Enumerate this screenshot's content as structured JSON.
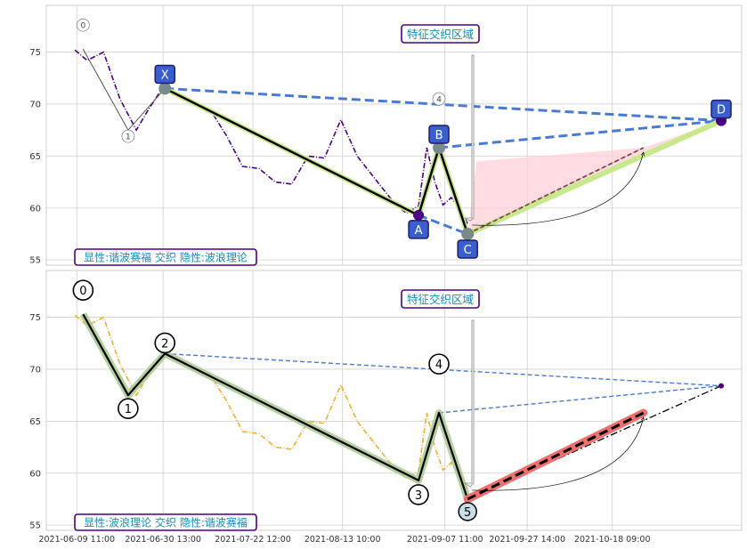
{
  "chart_data": [
    {
      "type": "line",
      "panel": "top",
      "title_box": "特征交织区域",
      "legend_box": "显性:谐波赛福 交织 隐性:波浪理论",
      "ylim": [
        54.5,
        79.5
      ],
      "yticks": [
        55,
        60,
        65,
        70,
        75
      ],
      "colors": {
        "price": "#4b0082",
        "pattern_dash": "#4a7bd4",
        "pattern_solid": "#000000",
        "pattern_glow": "#c8e88c",
        "fill": "#ffd0d8",
        "label_bg": "#3a5fcd",
        "label_border": "#1c1c6e"
      },
      "price_series": {
        "name": "",
        "x": [
          "2021-06-09",
          "2021-06-12",
          "2021-06-16",
          "2021-06-20",
          "2021-06-24",
          "2021-06-27",
          "2021-06-30",
          "2021-07-04",
          "2021-07-08",
          "2021-07-12",
          "2021-07-16",
          "2021-07-20",
          "2021-07-24",
          "2021-07-28",
          "2021-08-01",
          "2021-08-05",
          "2021-08-09",
          "2021-08-13",
          "2021-08-17",
          "2021-08-20",
          "2021-08-23",
          "2021-08-26",
          "2021-08-29",
          "2021-09-01",
          "2021-09-03",
          "2021-09-05",
          "2021-09-07",
          "2021-09-09",
          "2021-09-11",
          "2021-09-13"
        ],
        "y": [
          75.2,
          74.2,
          75.0,
          70.5,
          67.5,
          69.5,
          71.3,
          71.0,
          70.2,
          69.5,
          67.0,
          64.0,
          63.8,
          62.5,
          62.3,
          65.0,
          64.8,
          68.5,
          65.0,
          63.5,
          62.0,
          60.5,
          59.5,
          60.2,
          65.8,
          62.5,
          60.3,
          61.0,
          60.0,
          58.5
        ]
      },
      "points": [
        {
          "label": "0",
          "x": "2021-06-11",
          "y": 75.3,
          "style": "wave"
        },
        {
          "label": "1",
          "x": "2021-06-22",
          "y": 67.5,
          "style": "wave"
        },
        {
          "label": "X",
          "x": "2021-07-01",
          "y": 71.5,
          "style": "harmonic"
        },
        {
          "label": "A",
          "x": "2021-09-01",
          "y": 59.3,
          "style": "harmonic"
        },
        {
          "label": "B",
          "x": "2021-09-06",
          "y": 65.8,
          "style": "harmonic"
        },
        {
          "label": "C",
          "x": "2021-09-13",
          "y": 57.5,
          "style": "harmonic"
        },
        {
          "label": "D",
          "x": "2021-11-14",
          "y": 68.4,
          "style": "harmonic"
        },
        {
          "label": "4",
          "x": "2021-09-06",
          "y": 70.5,
          "style": "wave"
        }
      ],
      "projection_target": {
        "x": "2021-10-26",
        "y": 65.8
      }
    },
    {
      "type": "line",
      "panel": "bottom",
      "title_box": "特征交织区域",
      "legend_box": "显性:波浪理论 交织 隐性:谐波赛福",
      "ylim": [
        54.5,
        79.5
      ],
      "yticks": [
        55,
        60,
        65,
        70,
        75
      ],
      "xticks": [
        "2021-06-09 11:00",
        "2021-06-30 13:00",
        "2021-07-22 12:00",
        "2021-08-13 10:00",
        "2021-09-07 11:00",
        "2021-09-27 14:00",
        "2021-10-18 09:00"
      ],
      "colors": {
        "price": "#f0b030",
        "wave": "#000000",
        "wave_glow": "#a8c890",
        "target": "#f07070",
        "pattern_dash": "#4a7bd4",
        "end_dot": "#4b0082"
      },
      "price_series": {
        "name": "",
        "x": [
          "2021-06-09",
          "2021-06-12",
          "2021-06-16",
          "2021-06-20",
          "2021-06-24",
          "2021-06-27",
          "2021-06-30",
          "2021-07-04",
          "2021-07-08",
          "2021-07-12",
          "2021-07-16",
          "2021-07-20",
          "2021-07-24",
          "2021-07-28",
          "2021-08-01",
          "2021-08-05",
          "2021-08-09",
          "2021-08-13",
          "2021-08-17",
          "2021-08-20",
          "2021-08-23",
          "2021-08-26",
          "2021-08-29",
          "2021-09-01",
          "2021-09-03",
          "2021-09-05",
          "2021-09-07",
          "2021-09-09",
          "2021-09-11",
          "2021-09-13"
        ],
        "y": [
          75.2,
          74.2,
          75.0,
          70.5,
          67.5,
          69.5,
          71.3,
          71.0,
          70.2,
          69.5,
          67.0,
          64.0,
          63.8,
          62.5,
          62.3,
          65.0,
          64.8,
          68.5,
          65.0,
          63.5,
          62.0,
          60.5,
          59.5,
          60.2,
          65.8,
          62.5,
          60.3,
          61.0,
          60.0,
          58.5
        ]
      },
      "points": [
        {
          "label": "0",
          "x": "2021-06-11",
          "y": 75.3
        },
        {
          "label": "1",
          "x": "2021-06-22",
          "y": 67.5
        },
        {
          "label": "2",
          "x": "2021-07-01",
          "y": 71.5
        },
        {
          "label": "3",
          "x": "2021-09-01",
          "y": 59.3
        },
        {
          "label": "4",
          "x": "2021-09-06",
          "y": 65.8
        },
        {
          "label": "5",
          "x": "2021-09-13",
          "y": 57.5
        }
      ],
      "label_4_display": {
        "x": "2021-09-06",
        "y": 70.5
      },
      "pattern_end": {
        "x": "2021-11-14",
        "y": 68.4
      },
      "projection_target": {
        "x": "2021-10-26",
        "y": 65.8
      }
    }
  ]
}
